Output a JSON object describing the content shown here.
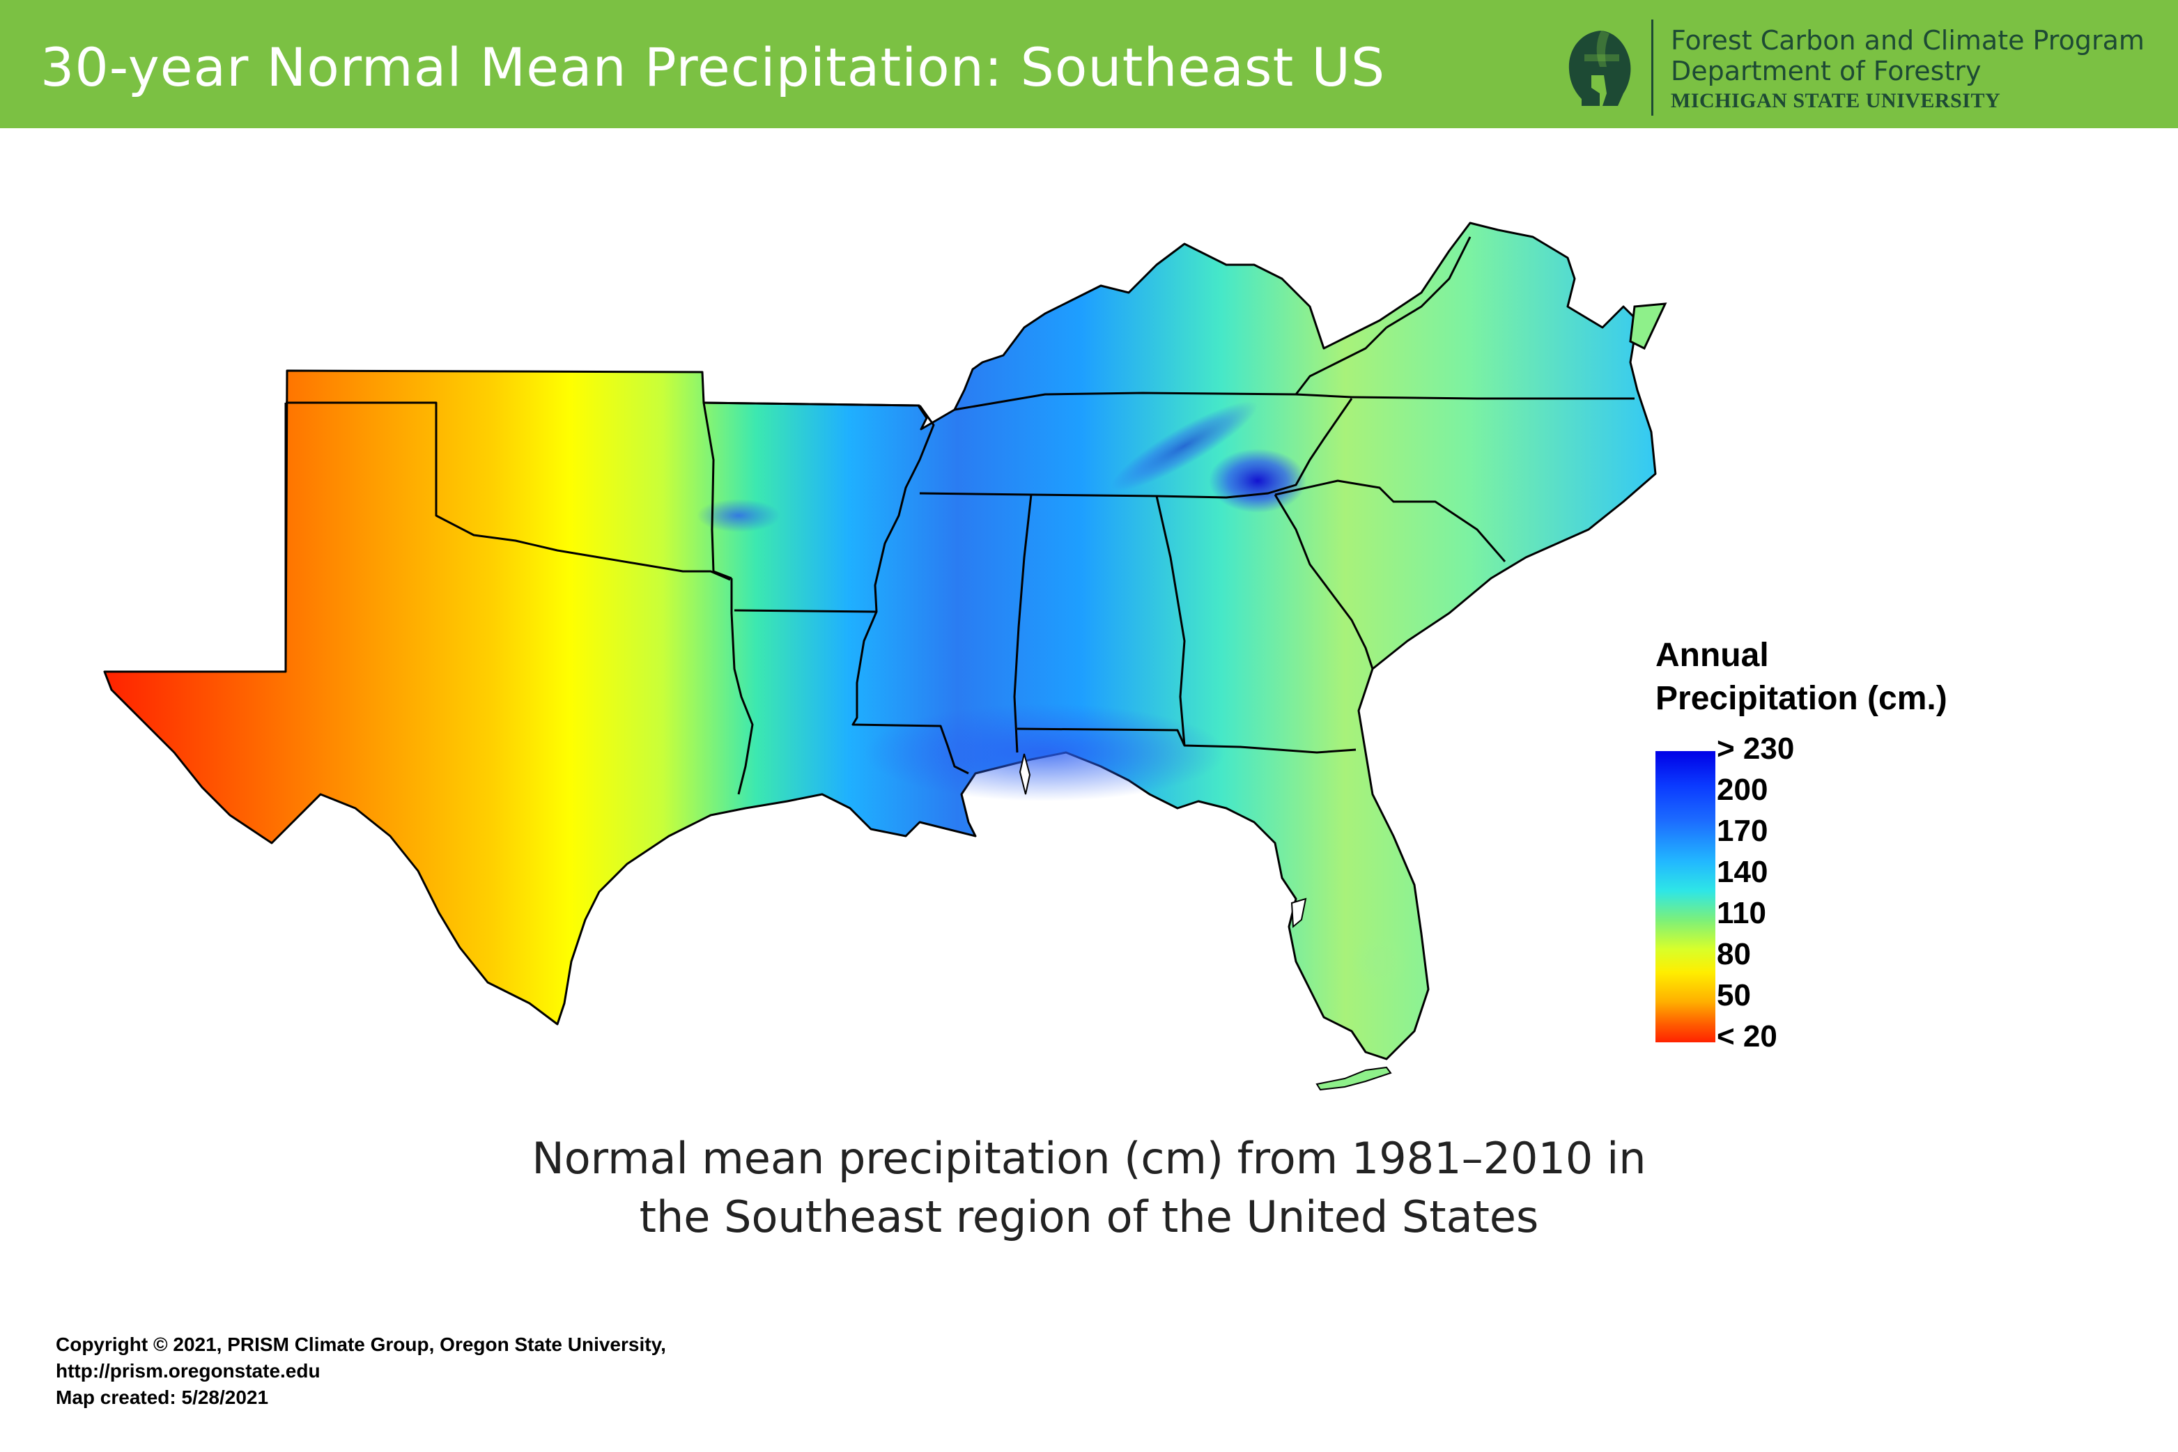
{
  "header": {
    "title": "30-year Normal Mean Precipitation: Southeast US",
    "org_line1": "Forest Carbon and Climate Program",
    "org_line2": "Department of Forestry",
    "org_line3": "MICHIGAN STATE UNIVERSITY",
    "logo_icon": "spartan-helmet-icon",
    "background_color": "#7bc143",
    "logo_color": "#1d4a34"
  },
  "legend": {
    "title_line1": "Annual",
    "title_line2": "Precipitation (cm.)",
    "labels": [
      "> 230",
      "200",
      "170",
      "140",
      "110",
      "80",
      "50",
      "< 20"
    ],
    "colors": [
      "#0000e6",
      "#1c6cff",
      "#22b8ff",
      "#2ee6e6",
      "#7cf07a",
      "#ffee00",
      "#ff8a00",
      "#ff2200"
    ]
  },
  "caption": {
    "line1": "Normal mean precipitation (cm) from 1981–2010 in",
    "line2": "the Southeast region of the United States"
  },
  "credits": {
    "line1": "Copyright © 2021, PRISM Climate Group, Oregon State University,",
    "line2": "http://prism.oregonstate.edu",
    "line3": "Map created: 5/28/2021"
  }
}
